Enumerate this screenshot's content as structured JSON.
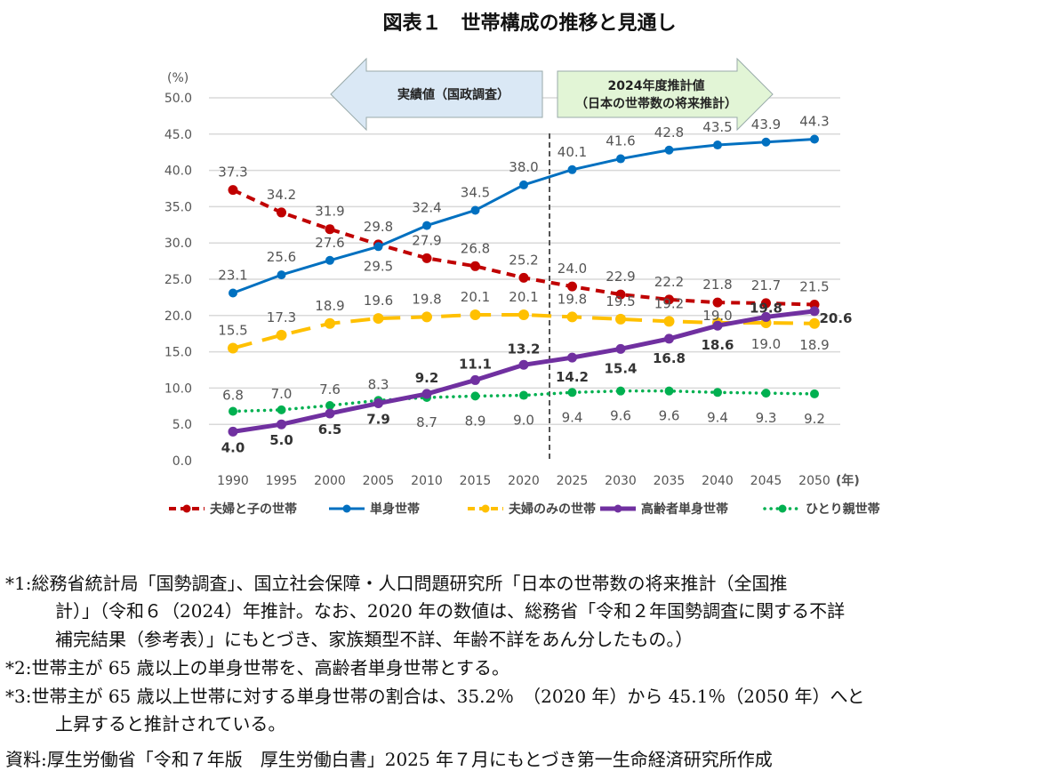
{
  "chart_data": {
    "type": "line",
    "title": "図表１　世帯構成の推移と見通し",
    "ylabel": "(%)",
    "xlabel": "(年)",
    "ylim": [
      0,
      50
    ],
    "yticks": [
      "0.0",
      "5.0",
      "10.0",
      "15.0",
      "20.0",
      "25.0",
      "30.0",
      "35.0",
      "40.0",
      "45.0",
      "50.0"
    ],
    "x": [
      "1990",
      "1995",
      "2000",
      "2005",
      "2010",
      "2015",
      "2020",
      "2025",
      "2030",
      "2035",
      "2040",
      "2045",
      "2050"
    ],
    "grid": true,
    "legend_position": "bottom",
    "annotations": {
      "actual": "実績値（国政調査）",
      "projection_line1": "2024年度推計値",
      "projection_line2": "（日本の世帯数の将来推計）"
    },
    "series": [
      {
        "name": "夫婦と子の世帯",
        "color": "#C00000",
        "style": "dashed",
        "values": [
          37.3,
          34.2,
          31.9,
          29.8,
          27.9,
          26.8,
          25.2,
          24.0,
          22.9,
          22.2,
          21.8,
          21.7,
          21.5
        ]
      },
      {
        "name": "単身世帯",
        "color": "#0070C0",
        "style": "solid",
        "values": [
          23.1,
          25.6,
          27.6,
          29.5,
          32.4,
          34.5,
          38.0,
          40.1,
          41.6,
          42.8,
          43.5,
          43.9,
          44.3
        ]
      },
      {
        "name": "夫婦のみの世帯",
        "color": "#FFC000",
        "style": "longdash",
        "values": [
          15.5,
          17.3,
          18.9,
          19.6,
          19.8,
          20.1,
          20.1,
          19.8,
          19.5,
          19.2,
          19.0,
          19.0,
          18.9
        ]
      },
      {
        "name": "高齢者単身世帯",
        "color": "#7030A0",
        "style": "thick",
        "values": [
          4.0,
          5.0,
          6.5,
          7.9,
          9.2,
          11.1,
          13.2,
          14.2,
          15.4,
          16.8,
          18.6,
          19.8,
          20.6
        ]
      },
      {
        "name": "ひとり親世帯",
        "color": "#00B050",
        "style": "dotted",
        "values": [
          6.8,
          7.0,
          7.6,
          8.3,
          8.7,
          8.9,
          9.0,
          9.4,
          9.6,
          9.6,
          9.4,
          9.3,
          9.2
        ]
      }
    ]
  },
  "notes": [
    "*1:総務省統計局「国勢調査」、国立社会保障・人口問題研究所「日本の世帯数の将来推計（全国推",
    "計）」（令和６（2024）年推計。なお、2020 年の数値は、総務省「令和２年国勢調査に関する不詳",
    "補完結果（参考表）」にもとづき、家族類型不詳、年齢不詳をあん分したもの。）",
    "*2:世帯主が 65 歳以上の単身世帯を、高齢者単身世帯とする。",
    "*3:世帯主が 65 歳以上世帯に対する単身世帯の割合は、35.2％　（2020 年）から 45.1％（2050 年）へと",
    "上昇すると推計されている。",
    "資料:厚生労働省「令和７年版　厚生労働白書」2025 年７月にもとづき第一生命経済研究所作成"
  ]
}
